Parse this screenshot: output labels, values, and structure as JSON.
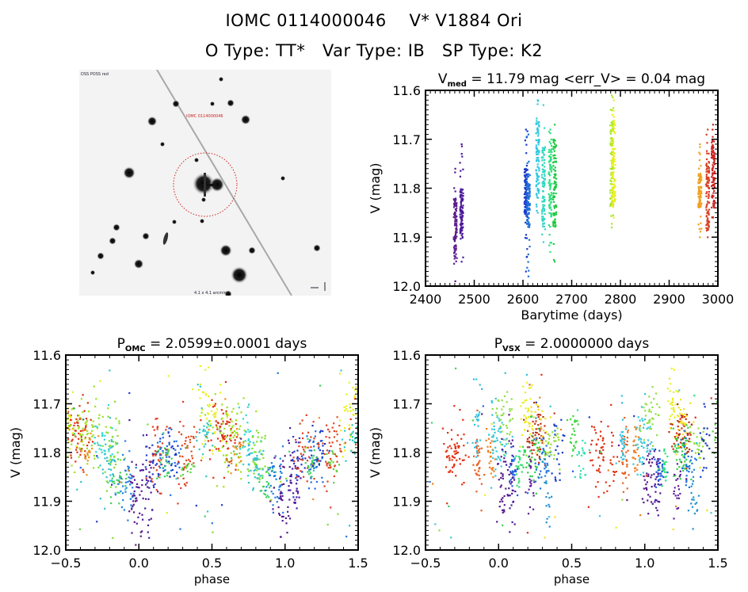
{
  "header": {
    "line1": "IOMC 0114000046    V* V1884 Ori",
    "line2": "O Type: TT*   Var Type: IB   SP Type: K2"
  },
  "finder_chart": {
    "description": "DSS-like grayscale finder image with red dotted circle around target",
    "top_left_label": "DSS POSS red",
    "target_label": "IOMC 0114000046",
    "bottom_center_label": "4.1 x 4.1 arcmin",
    "circle_color": "#cc2222"
  },
  "chart_data": [
    {
      "id": "lightcurve",
      "type": "scatter",
      "title_main": "V",
      "title_sub": "med",
      "title_rest": " = 11.79 mag <err_V> = 0.04 mag",
      "xlabel": "Barytime (days)",
      "ylabel": "V (mag)",
      "xlim": [
        2400,
        3000
      ],
      "ylim": [
        12.0,
        11.6
      ],
      "y_inverted": true,
      "xticks": [
        "2400",
        "2500",
        "2600",
        "2700",
        "2800",
        "2900",
        "3000"
      ],
      "yticks": [
        "11.6",
        "11.7",
        "11.8",
        "11.9",
        "12.0"
      ],
      "grid": false,
      "groups": [
        {
          "t": 2461,
          "v_min": 11.76,
          "v_max": 11.99,
          "v_core": [
            11.82,
            11.94
          ],
          "color": "#5a1a8c"
        },
        {
          "t": 2474,
          "v_min": 11.71,
          "v_max": 11.95,
          "v_core": [
            11.8,
            11.9
          ],
          "color": "#4b1a9a"
        },
        {
          "t": 2606,
          "v_min": 11.68,
          "v_max": 11.97,
          "v_core": [
            11.76,
            11.86
          ],
          "color": "#1a3acc"
        },
        {
          "t": 2611,
          "v_min": 11.69,
          "v_max": 11.98,
          "v_core": [
            11.77,
            11.88
          ],
          "color": "#1e6fd8"
        },
        {
          "t": 2630,
          "v_min": 11.62,
          "v_max": 11.85,
          "v_core": [
            11.66,
            11.82
          ],
          "color": "#30c8e0"
        },
        {
          "t": 2642,
          "v_min": 11.63,
          "v_max": 11.91,
          "v_core": [
            11.72,
            11.88
          ],
          "color": "#30d8c0"
        },
        {
          "t": 2656,
          "v_min": 11.68,
          "v_max": 11.93,
          "v_core": [
            11.72,
            11.86
          ],
          "color": "#30e080"
        },
        {
          "t": 2665,
          "v_min": 11.67,
          "v_max": 11.95,
          "v_core": [
            11.7,
            11.88
          ],
          "color": "#20c840"
        },
        {
          "t": 2782,
          "v_min": 11.61,
          "v_max": 11.88,
          "v_core": [
            11.66,
            11.84
          ],
          "color": "#a8e820"
        },
        {
          "t": 2786,
          "v_min": 11.62,
          "v_max": 11.86,
          "v_core": [
            11.67,
            11.83
          ],
          "color": "#e8f020"
        },
        {
          "t": 2963,
          "v_min": 11.71,
          "v_max": 11.9,
          "v_core": [
            11.77,
            11.84
          ],
          "color": "#f0a020"
        },
        {
          "t": 2979,
          "v_min": 11.68,
          "v_max": 11.9,
          "v_core": [
            11.74,
            11.89
          ],
          "color": "#d84020"
        },
        {
          "t": 2990,
          "v_min": 11.67,
          "v_max": 11.86,
          "v_core": [
            11.7,
            11.84
          ],
          "color": "#d02020"
        }
      ]
    },
    {
      "id": "phase-omc",
      "type": "scatter",
      "title_main": "P",
      "title_sub": "OMC",
      "title_rest": " = 2.0599±0.0001 days",
      "xlabel": "phase",
      "ylabel": "V (mag)",
      "xlim": [
        -0.5,
        1.5
      ],
      "ylim": [
        12.0,
        11.6
      ],
      "y_inverted": true,
      "xticks": [
        "−0.5",
        "0.0",
        "0.5",
        "1.0",
        "1.5"
      ],
      "yticks": [
        "11.6",
        "11.7",
        "11.8",
        "11.9",
        "12.0"
      ],
      "grid": false,
      "period_days": 2.0599,
      "clusters": [
        {
          "phase": 0.58,
          "v": 11.76,
          "sx": 0.05,
          "sy": 0.035,
          "n": 70,
          "color": "#e03010"
        },
        {
          "phase": 0.62,
          "v": 11.76,
          "sx": 0.07,
          "sy": 0.04,
          "n": 70,
          "color": "#a0e020"
        },
        {
          "phase": 0.48,
          "v": 11.72,
          "sx": 0.05,
          "sy": 0.04,
          "n": 45,
          "color": "#e8f020"
        },
        {
          "phase": 0.46,
          "v": 11.76,
          "sx": 0.03,
          "sy": 0.02,
          "n": 25,
          "color": "#30c8c0"
        },
        {
          "phase": 0.66,
          "v": 11.79,
          "sx": 0.03,
          "sy": 0.02,
          "n": 20,
          "color": "#f09020"
        },
        {
          "phase": 0.75,
          "v": 11.78,
          "sx": 0.04,
          "sy": 0.03,
          "n": 30,
          "color": "#30d8d0"
        },
        {
          "phase": 0.82,
          "v": 11.8,
          "sx": 0.04,
          "sy": 0.04,
          "n": 40,
          "color": "#80e030"
        },
        {
          "phase": 0.8,
          "v": 11.83,
          "sx": 0.03,
          "sy": 0.03,
          "n": 30,
          "color": "#30c0d0"
        },
        {
          "phase": 0.87,
          "v": 11.86,
          "sx": 0.03,
          "sy": 0.02,
          "n": 25,
          "color": "#40d060"
        },
        {
          "phase": 0.93,
          "v": 11.86,
          "sx": 0.03,
          "sy": 0.03,
          "n": 40,
          "color": "#2080e0"
        },
        {
          "phase": 0.98,
          "v": 11.89,
          "sx": 0.025,
          "sy": 0.04,
          "n": 35,
          "color": "#5a1a8c"
        },
        {
          "phase": 1.06,
          "v": 11.85,
          "sx": 0.03,
          "sy": 0.05,
          "n": 40,
          "color": "#4b1a9a"
        },
        {
          "phase": 1.08,
          "v": 11.82,
          "sx": 0.03,
          "sy": 0.03,
          "n": 20,
          "color": "#2a3ad0"
        },
        {
          "phase": 1.14,
          "v": 11.8,
          "sx": 0.04,
          "sy": 0.035,
          "n": 40,
          "color": "#e04020"
        },
        {
          "phase": 1.2,
          "v": 11.81,
          "sx": 0.04,
          "sy": 0.03,
          "n": 40,
          "color": "#2070e0"
        },
        {
          "phase": 1.18,
          "v": 11.82,
          "sx": 0.03,
          "sy": 0.02,
          "n": 25,
          "color": "#40d060"
        },
        {
          "phase": 1.24,
          "v": 11.8,
          "sx": 0.03,
          "sy": 0.03,
          "n": 20,
          "color": "#1a3acc"
        },
        {
          "phase": 1.3,
          "v": 11.81,
          "sx": 0.03,
          "sy": 0.04,
          "n": 30,
          "color": "#e04020"
        },
        {
          "phase": 1.32,
          "v": 11.83,
          "sx": 0.02,
          "sy": 0.02,
          "n": 15,
          "color": "#60d040"
        },
        {
          "phase": 1.36,
          "v": 11.78,
          "sx": 0.02,
          "sy": 0.03,
          "n": 15,
          "color": "#e05020"
        }
      ],
      "outliers": 80
    },
    {
      "id": "phase-vsx",
      "type": "scatter",
      "title_main": "P",
      "title_sub": "VSX",
      "title_rest": " = 2.0000000 days",
      "xlabel": "phase",
      "ylabel": "V (mag)",
      "xlim": [
        -0.5,
        1.5
      ],
      "ylim": [
        12.0,
        11.6
      ],
      "y_inverted": true,
      "xticks": [
        "−0.5",
        "0.0",
        "0.5",
        "1.0",
        "1.5"
      ],
      "yticks": [
        "11.6",
        "11.7",
        "11.8",
        "11.9",
        "12.0"
      ],
      "grid": false,
      "period_days": 2.0,
      "clusters": [
        {
          "phase": 0.71,
          "v": 11.8,
          "sx": 0.04,
          "sy": 0.035,
          "n": 60,
          "color": "#e03010"
        },
        {
          "phase": 0.86,
          "v": 11.81,
          "sx": 0.015,
          "sy": 0.04,
          "n": 35,
          "color": "#e86020"
        },
        {
          "phase": 0.94,
          "v": 11.8,
          "sx": 0.015,
          "sy": 0.03,
          "n": 25,
          "color": "#f08020"
        },
        {
          "phase": 0.85,
          "v": 11.76,
          "sx": 0.015,
          "sy": 0.04,
          "n": 25,
          "color": "#30c0e0"
        },
        {
          "phase": 0.97,
          "v": 11.77,
          "sx": 0.02,
          "sy": 0.04,
          "n": 25,
          "color": "#30c8d0"
        },
        {
          "phase": 1.02,
          "v": 11.85,
          "sx": 0.015,
          "sy": 0.04,
          "n": 30,
          "color": "#5a1a8c"
        },
        {
          "phase": 1.08,
          "v": 11.86,
          "sx": 0.015,
          "sy": 0.04,
          "n": 35,
          "color": "#4b1a9a"
        },
        {
          "phase": 1.1,
          "v": 11.84,
          "sx": 0.015,
          "sy": 0.02,
          "n": 25,
          "color": "#2060e0"
        },
        {
          "phase": 1.04,
          "v": 11.73,
          "sx": 0.03,
          "sy": 0.03,
          "n": 35,
          "color": "#90e040"
        },
        {
          "phase": 1.14,
          "v": 11.83,
          "sx": 0.015,
          "sy": 0.02,
          "n": 20,
          "color": "#30e070"
        },
        {
          "phase": 1.19,
          "v": 11.7,
          "sx": 0.02,
          "sy": 0.03,
          "n": 25,
          "color": "#e8f020"
        },
        {
          "phase": 1.26,
          "v": 11.76,
          "sx": 0.04,
          "sy": 0.03,
          "n": 60,
          "color": "#c03010"
        },
        {
          "phase": 1.25,
          "v": 11.74,
          "sx": 0.04,
          "sy": 0.03,
          "n": 35,
          "color": "#f0e020"
        },
        {
          "phase": 1.24,
          "v": 11.81,
          "sx": 0.04,
          "sy": 0.035,
          "n": 45,
          "color": "#30d050"
        },
        {
          "phase": 1.3,
          "v": 11.82,
          "sx": 0.03,
          "sy": 0.03,
          "n": 30,
          "color": "#2070e0"
        },
        {
          "phase": 1.22,
          "v": 11.87,
          "sx": 0.015,
          "sy": 0.03,
          "n": 20,
          "color": "#6020a0"
        },
        {
          "phase": 1.33,
          "v": 11.89,
          "sx": 0.015,
          "sy": 0.04,
          "n": 20,
          "color": "#2090d0"
        },
        {
          "phase": 1.37,
          "v": 11.78,
          "sx": 0.03,
          "sy": 0.02,
          "n": 25,
          "color": "#90e030"
        },
        {
          "phase": 1.4,
          "v": 11.79,
          "sx": 0.02,
          "sy": 0.04,
          "n": 20,
          "color": "#1a3acc"
        },
        {
          "phase": 1.01,
          "v": 11.78,
          "sx": 0.03,
          "sy": 0.03,
          "n": 25,
          "color": "#40c8e0"
        },
        {
          "phase": 1.51,
          "v": 11.76,
          "sx": 0.02,
          "sy": 0.03,
          "n": 25,
          "color": "#40d840"
        },
        {
          "phase": 1.56,
          "v": 11.83,
          "sx": 0.02,
          "sy": 0.03,
          "n": 20,
          "color": "#30e0b0"
        }
      ],
      "outliers": 70
    }
  ]
}
